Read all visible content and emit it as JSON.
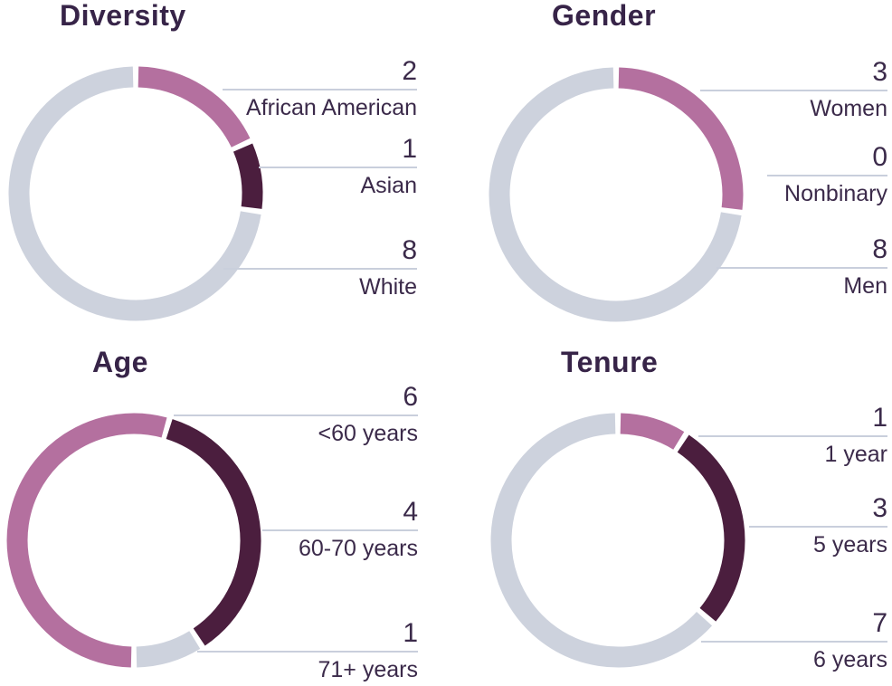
{
  "page": {
    "background": "#ffffff"
  },
  "colors": {
    "mauve": "#b4709f",
    "plum": "#4b1e3e",
    "ring_gray": "#cdd2dd",
    "leader_line": "#c9cfdc",
    "title_text": "#372448",
    "callout_text": "#3b2a4a"
  },
  "chart_data": [
    {
      "type": "pie",
      "variant": "donut",
      "title": "Diversity",
      "total": 11,
      "start_angle_deg": 0,
      "legend_position": "right-callouts",
      "segments": [
        {
          "label": "African American",
          "value": 2,
          "color_key": "mauve"
        },
        {
          "label": "Asian",
          "value": 1,
          "color_key": "plum"
        },
        {
          "label": "White",
          "value": 8,
          "color_key": "ring_gray"
        }
      ]
    },
    {
      "type": "pie",
      "variant": "donut",
      "title": "Gender",
      "total": 11,
      "start_angle_deg": 0,
      "legend_position": "right-callouts",
      "segments": [
        {
          "label": "Women",
          "value": 3,
          "color_key": "mauve"
        },
        {
          "label": "Nonbinary",
          "value": 0,
          "color_key": "plum"
        },
        {
          "label": "Men",
          "value": 8,
          "color_key": "ring_gray"
        }
      ]
    },
    {
      "type": "pie",
      "variant": "donut",
      "title": "Age",
      "total": 11,
      "start_angle_deg": 180,
      "legend_position": "right-callouts",
      "segments": [
        {
          "label": "<60 years",
          "value": 6,
          "color_key": "mauve"
        },
        {
          "label": "60-70 years",
          "value": 4,
          "color_key": "plum"
        },
        {
          "label": "71+ years",
          "value": 1,
          "color_key": "ring_gray"
        }
      ]
    },
    {
      "type": "pie",
      "variant": "donut",
      "title": "Tenure",
      "total": 11,
      "start_angle_deg": 0,
      "legend_position": "right-callouts",
      "segments": [
        {
          "label": "1 year",
          "value": 1,
          "color_key": "mauve"
        },
        {
          "label": "5 years",
          "value": 3,
          "color_key": "plum"
        },
        {
          "label": "6 years",
          "value": 7,
          "color_key": "ring_gray"
        }
      ]
    }
  ]
}
